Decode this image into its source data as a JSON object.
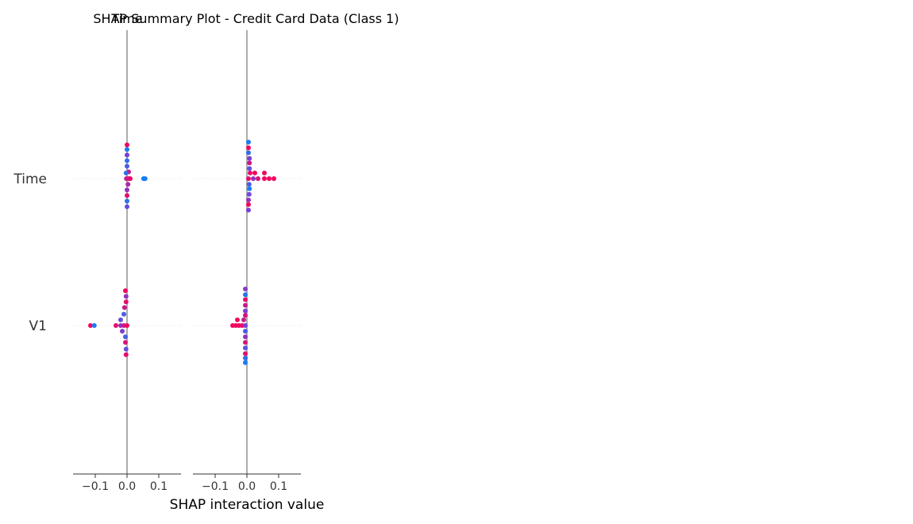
{
  "chart_data": {
    "type": "scatter",
    "title_overlap_left": "SHAP Summary Plot - Credit Card Data (Class 1)",
    "title_overlap_right": "Time",
    "xlabel": "SHAP interaction value",
    "features": [
      "Time",
      "V1"
    ],
    "xlim": [
      -0.17,
      0.17
    ],
    "x_ticks": [
      -0.1,
      0.0,
      0.1
    ],
    "x_tick_labels": [
      "−0.1",
      "0.0",
      "0.1"
    ],
    "color_high": "#ff0052",
    "color_low": "#008bfb",
    "color_mid": "#7b3fd6",
    "grid": false,
    "panels": [
      {
        "name": "Time",
        "rows": [
          {
            "feature": "Time",
            "points": [
              {
                "x": 0.0,
                "jitter": -0.6,
                "v": 0.95
              },
              {
                "x": 0.0,
                "jitter": -0.52,
                "v": 0.1
              },
              {
                "x": 0.0,
                "jitter": -0.42,
                "v": 0.5
              },
              {
                "x": 0.0,
                "jitter": -0.32,
                "v": 0.2
              },
              {
                "x": 0.0,
                "jitter": -0.22,
                "v": 0.3
              },
              {
                "x": 0.005,
                "jitter": -0.12,
                "v": 0.8
              },
              {
                "x": -0.003,
                "jitter": -0.1,
                "v": 0.2
              },
              {
                "x": 0.01,
                "jitter": 0.0,
                "v": 0.95
              },
              {
                "x": 0.005,
                "jitter": 0.0,
                "v": 0.9
              },
              {
                "x": -0.002,
                "jitter": 0.0,
                "v": 0.8
              },
              {
                "x": 0.003,
                "jitter": 0.1,
                "v": 0.7
              },
              {
                "x": 0.0,
                "jitter": 0.2,
                "v": 0.6
              },
              {
                "x": 0.0,
                "jitter": 0.3,
                "v": 0.9
              },
              {
                "x": 0.0,
                "jitter": 0.4,
                "v": 0.2
              },
              {
                "x": 0.0,
                "jitter": 0.5,
                "v": 0.4
              },
              {
                "x": 0.052,
                "jitter": 0.0,
                "v": 0.05
              },
              {
                "x": 0.057,
                "jitter": 0.0,
                "v": 0.1
              }
            ]
          },
          {
            "feature": "V1",
            "points": [
              {
                "x": -0.005,
                "jitter": -0.62,
                "v": 0.95
              },
              {
                "x": -0.003,
                "jitter": -0.52,
                "v": 0.6
              },
              {
                "x": -0.003,
                "jitter": -0.42,
                "v": 0.9
              },
              {
                "x": -0.008,
                "jitter": -0.32,
                "v": 0.8
              },
              {
                "x": -0.01,
                "jitter": -0.2,
                "v": 0.3
              },
              {
                "x": -0.02,
                "jitter": -0.1,
                "v": 0.4
              },
              {
                "x": -0.035,
                "jitter": 0.0,
                "v": 0.9
              },
              {
                "x": -0.02,
                "jitter": 0.0,
                "v": 0.6
              },
              {
                "x": -0.01,
                "jitter": 0.0,
                "v": 0.8
              },
              {
                "x": 0.0,
                "jitter": 0.0,
                "v": 0.95
              },
              {
                "x": -0.015,
                "jitter": 0.1,
                "v": 0.5
              },
              {
                "x": -0.005,
                "jitter": 0.2,
                "v": 0.3
              },
              {
                "x": -0.005,
                "jitter": 0.3,
                "v": 0.85
              },
              {
                "x": -0.003,
                "jitter": 0.42,
                "v": 0.4
              },
              {
                "x": -0.003,
                "jitter": 0.52,
                "v": 0.9
              },
              {
                "x": -0.115,
                "jitter": 0.0,
                "v": 0.95
              },
              {
                "x": -0.103,
                "jitter": 0.0,
                "v": 0.1
              }
            ]
          }
        ]
      },
      {
        "name": "V1",
        "rows": [
          {
            "feature": "Time",
            "points": [
              {
                "x": 0.005,
                "jitter": -0.65,
                "v": 0.1
              },
              {
                "x": 0.005,
                "jitter": -0.55,
                "v": 0.95
              },
              {
                "x": 0.005,
                "jitter": -0.46,
                "v": 0.2
              },
              {
                "x": 0.008,
                "jitter": -0.36,
                "v": 0.5
              },
              {
                "x": 0.008,
                "jitter": -0.28,
                "v": 0.8
              },
              {
                "x": 0.008,
                "jitter": -0.18,
                "v": 0.4
              },
              {
                "x": 0.01,
                "jitter": -0.1,
                "v": 0.9
              },
              {
                "x": 0.025,
                "jitter": -0.1,
                "v": 0.95
              },
              {
                "x": 0.055,
                "jitter": -0.1,
                "v": 0.95
              },
              {
                "x": 0.005,
                "jitter": 0.0,
                "v": 0.9
              },
              {
                "x": 0.02,
                "jitter": 0.0,
                "v": 0.6
              },
              {
                "x": 0.035,
                "jitter": 0.0,
                "v": 0.85
              },
              {
                "x": 0.055,
                "jitter": 0.0,
                "v": 0.95
              },
              {
                "x": 0.07,
                "jitter": 0.0,
                "v": 0.95
              },
              {
                "x": 0.085,
                "jitter": 0.0,
                "v": 0.95
              },
              {
                "x": 0.007,
                "jitter": 0.1,
                "v": 0.3
              },
              {
                "x": 0.008,
                "jitter": 0.18,
                "v": 0.1
              },
              {
                "x": 0.007,
                "jitter": 0.28,
                "v": 0.45
              },
              {
                "x": 0.005,
                "jitter": 0.38,
                "v": 0.6
              },
              {
                "x": 0.005,
                "jitter": 0.46,
                "v": 0.95
              },
              {
                "x": 0.005,
                "jitter": 0.56,
                "v": 0.5
              }
            ]
          },
          {
            "feature": "V1",
            "points": [
              {
                "x": -0.005,
                "jitter": -0.65,
                "v": 0.55
              },
              {
                "x": -0.005,
                "jitter": -0.55,
                "v": 0.15
              },
              {
                "x": -0.005,
                "jitter": -0.46,
                "v": 0.9
              },
              {
                "x": -0.005,
                "jitter": -0.36,
                "v": 0.8
              },
              {
                "x": -0.005,
                "jitter": -0.26,
                "v": 0.5
              },
              {
                "x": -0.005,
                "jitter": -0.18,
                "v": 0.85
              },
              {
                "x": -0.03,
                "jitter": -0.1,
                "v": 0.95
              },
              {
                "x": -0.01,
                "jitter": -0.1,
                "v": 0.8
              },
              {
                "x": -0.045,
                "jitter": 0.0,
                "v": 0.95
              },
              {
                "x": -0.035,
                "jitter": 0.0,
                "v": 0.95
              },
              {
                "x": -0.025,
                "jitter": 0.0,
                "v": 0.95
              },
              {
                "x": -0.015,
                "jitter": 0.0,
                "v": 0.9
              },
              {
                "x": -0.005,
                "jitter": 0.0,
                "v": 0.5
              },
              {
                "x": -0.005,
                "jitter": 0.1,
                "v": 0.3
              },
              {
                "x": -0.005,
                "jitter": 0.2,
                "v": 0.6
              },
              {
                "x": -0.005,
                "jitter": 0.3,
                "v": 0.85
              },
              {
                "x": -0.005,
                "jitter": 0.4,
                "v": 0.4
              },
              {
                "x": -0.005,
                "jitter": 0.5,
                "v": 0.9
              },
              {
                "x": -0.005,
                "jitter": 0.58,
                "v": 0.2
              },
              {
                "x": -0.005,
                "jitter": 0.66,
                "v": 0.1
              }
            ]
          }
        ]
      }
    ]
  }
}
